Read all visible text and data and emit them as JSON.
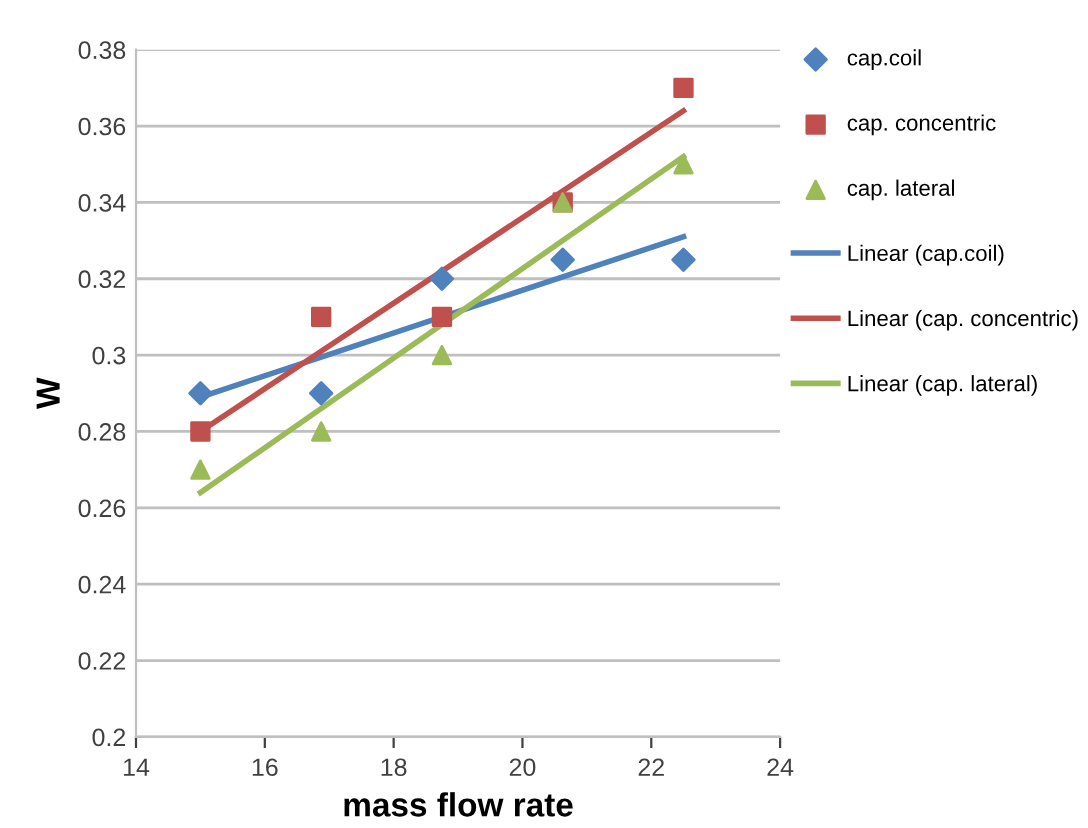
{
  "chart_data": {
    "type": "scatter",
    "xlabel": "mass flow rate",
    "ylabel": "W",
    "xlim": [
      14,
      24
    ],
    "xticks": [
      14,
      16,
      18,
      20,
      22,
      24
    ],
    "ylim": [
      0.2,
      0.38
    ],
    "yticks": [
      0.2,
      0.22,
      0.24,
      0.26,
      0.28,
      0.3,
      0.32,
      0.34,
      0.36,
      0.38
    ],
    "grid": "y",
    "legend": "right",
    "x": [
      15,
      16.875,
      18.75,
      20.625,
      22.5
    ],
    "series": [
      {
        "name": "cap.coil",
        "color": "#4f81bd",
        "marker": "diamond",
        "values": [
          0.29,
          0.29,
          0.32,
          0.325,
          0.325
        ]
      },
      {
        "name": "cap. concentric",
        "color": "#c0504d",
        "marker": "square",
        "values": [
          0.28,
          0.31,
          0.31,
          0.34,
          0.37
        ]
      },
      {
        "name": "cap. lateral",
        "color": "#9bbb59",
        "marker": "triangle",
        "values": [
          0.27,
          0.28,
          0.3,
          0.34,
          0.35
        ]
      },
      {
        "name": "Linear (cap.coil)",
        "type": "line",
        "color": "#4f81bd",
        "marker": "none",
        "line_style": "solid",
        "values": [
          0.289,
          0.2995,
          0.31,
          0.3205,
          0.331
        ]
      },
      {
        "name": "Linear (cap. concentric)",
        "type": "line",
        "color": "#c0504d",
        "marker": "none",
        "line_style": "solid",
        "values": [
          0.28,
          0.301,
          0.322,
          0.343,
          0.364
        ]
      },
      {
        "name": "Linear (cap. lateral)",
        "type": "line",
        "color": "#9bbb59",
        "marker": "none",
        "line_style": "solid",
        "values": [
          0.264,
          0.286,
          0.308,
          0.33,
          0.352
        ]
      }
    ]
  }
}
